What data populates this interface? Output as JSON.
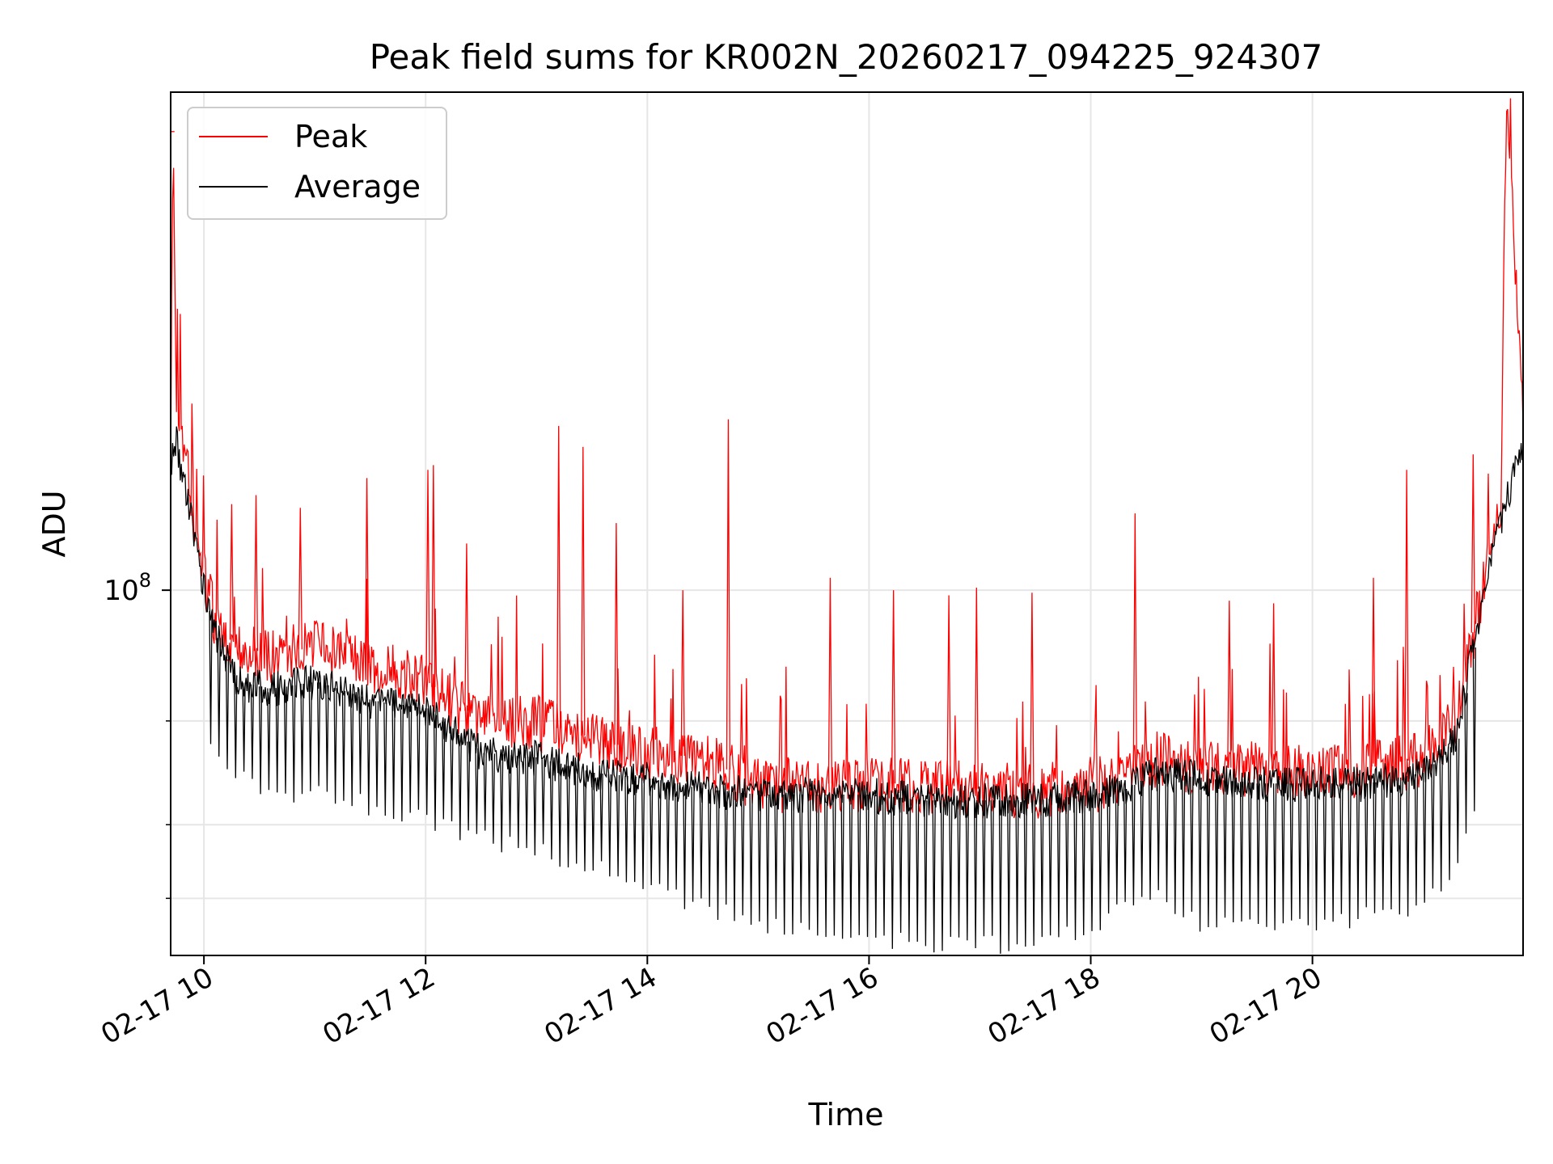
{
  "chart_data": {
    "type": "line",
    "title": "Peak field sums for KR002N_20260217_094225_924307",
    "xlabel": "Time",
    "ylabel": "ADU",
    "yscale": "log",
    "xlim_hours": [
      9.7,
      21.9
    ],
    "ylim": [
      24000000.0,
      700000000.0
    ],
    "grid": true,
    "legend_position": "upper-left",
    "x_ticks": [
      {
        "value": 10,
        "label": "02-17 10"
      },
      {
        "value": 12,
        "label": "02-17 12"
      },
      {
        "value": 14,
        "label": "02-17 14"
      },
      {
        "value": 16,
        "label": "02-17 16"
      },
      {
        "value": 18,
        "label": "02-17 18"
      },
      {
        "value": 20,
        "label": "02-17 20"
      }
    ],
    "y_major_ticks": [
      {
        "value": 100000000,
        "base": "10",
        "exponent": "8"
      }
    ],
    "y_minor_ticks": [
      30000000,
      40000000,
      60000000
    ],
    "x_unit": "hour of day (2026-02-17)",
    "series": [
      {
        "name": "Peak",
        "color": "#ff0000",
        "x": [
          9.7,
          9.72,
          9.75,
          9.8,
          9.9,
          10.0,
          10.1,
          10.3,
          10.6,
          11.0,
          11.5,
          12.0,
          12.5,
          13.0,
          13.5,
          14.0,
          14.5,
          15.0,
          15.5,
          16.0,
          16.5,
          17.0,
          17.5,
          18.0,
          18.3,
          18.6,
          19.0,
          19.5,
          20.0,
          20.5,
          21.0,
          21.3,
          21.5,
          21.7,
          21.75,
          21.9
        ],
        "values": [
          170000000.0,
          600000000.0,
          220000000.0,
          190000000.0,
          140000000.0,
          105000000.0,
          90000000.0,
          80000000.0,
          78000000.0,
          80000000.0,
          75000000.0,
          70000000.0,
          60000000.0,
          60000000.0,
          56000000.0,
          53000000.0,
          52000000.0,
          47000000.0,
          47000000.0,
          47000000.0,
          47000000.0,
          46000000.0,
          46000000.0,
          47000000.0,
          48000000.0,
          52000000.0,
          50000000.0,
          50000000.0,
          49000000.0,
          50000000.0,
          52000000.0,
          60000000.0,
          95000000.0,
          140000000.0,
          700000000.0,
          190000000.0
        ],
        "spikes": [
          {
            "x": 9.72,
            "value": 600000000.0
          },
          {
            "x": 10.25,
            "value": 140000000.0
          },
          {
            "x": 10.47,
            "value": 145000000.0
          },
          {
            "x": 10.87,
            "value": 138000000.0
          },
          {
            "x": 11.47,
            "value": 155000000.0
          },
          {
            "x": 12.02,
            "value": 160000000.0
          },
          {
            "x": 12.07,
            "value": 163000000.0
          },
          {
            "x": 12.37,
            "value": 120000000.0
          },
          {
            "x": 13.2,
            "value": 190000000.0
          },
          {
            "x": 13.42,
            "value": 175000000.0
          },
          {
            "x": 13.72,
            "value": 130000000.0
          },
          {
            "x": 14.32,
            "value": 100000000.0
          },
          {
            "x": 14.73,
            "value": 195000000.0
          },
          {
            "x": 15.65,
            "value": 105000000.0
          },
          {
            "x": 16.22,
            "value": 100000000.0
          },
          {
            "x": 16.72,
            "value": 98000000.0
          },
          {
            "x": 16.97,
            "value": 101000000.0
          },
          {
            "x": 17.47,
            "value": 99000000.0
          },
          {
            "x": 18.4,
            "value": 135000000.0
          },
          {
            "x": 19.25,
            "value": 96000000.0
          },
          {
            "x": 19.65,
            "value": 95000000.0
          },
          {
            "x": 20.55,
            "value": 105000000.0
          },
          {
            "x": 20.85,
            "value": 160000000.0
          },
          {
            "x": 21.45,
            "value": 170000000.0
          }
        ]
      },
      {
        "name": "Average",
        "color": "#000000",
        "x": [
          9.7,
          9.75,
          9.8,
          9.9,
          10.0,
          10.1,
          10.3,
          10.6,
          11.0,
          11.5,
          12.0,
          12.5,
          13.0,
          13.5,
          14.0,
          14.5,
          15.0,
          15.5,
          16.0,
          16.5,
          17.0,
          17.5,
          18.0,
          18.3,
          18.6,
          19.0,
          19.5,
          20.0,
          20.5,
          21.0,
          21.3,
          21.5,
          21.7,
          21.9
        ],
        "values": [
          165000000.0,
          180000000.0,
          160000000.0,
          130000000.0,
          100000000.0,
          85000000.0,
          70000000.0,
          68000000.0,
          70000000.0,
          65000000.0,
          63000000.0,
          53000000.0,
          52000000.0,
          49000000.0,
          48000000.0,
          46000000.0,
          45000000.0,
          45000000.0,
          45000000.0,
          44000000.0,
          44000000.0,
          44000000.0,
          45000000.0,
          46000000.0,
          49000000.0,
          48000000.0,
          47000000.0,
          47000000.0,
          47000000.0,
          49000000.0,
          56000000.0,
          90000000.0,
          130000000.0,
          180000000.0
        ],
        "dip_floor": {
          "x": [
            10.0,
            10.5,
            11.0,
            11.5,
            12.0,
            12.5,
            13.0,
            13.5,
            14.0,
            14.5,
            15.0,
            15.5,
            16.0,
            16.5,
            17.0,
            17.5,
            18.0,
            18.3,
            18.6,
            19.0,
            19.5,
            20.0,
            20.5,
            21.0,
            21.3,
            21.5
          ],
          "values": [
            55000000.0,
            46000000.0,
            45000000.0,
            43000000.0,
            41000000.0,
            38000000.0,
            36000000.0,
            34000000.0,
            31000000.0,
            29000000.0,
            27000000.0,
            26000000.0,
            26000000.0,
            25000000.0,
            25000000.0,
            25000000.0,
            27000000.0,
            29000000.0,
            30000000.0,
            27000000.0,
            27000000.0,
            27000000.0,
            28000000.0,
            29000000.0,
            35000000.0,
            45000000.0
          ]
        }
      }
    ]
  }
}
